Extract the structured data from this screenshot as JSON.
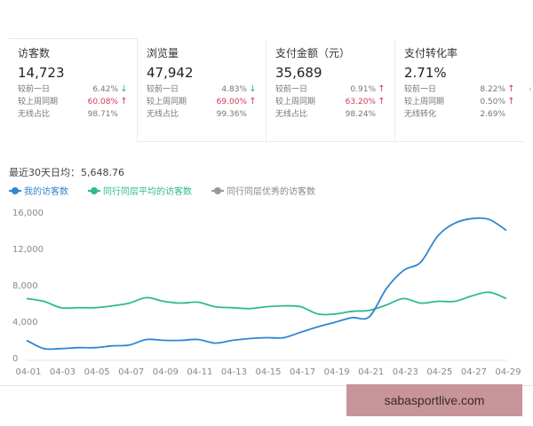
{
  "cards": [
    {
      "title": "访客数",
      "value": "14,723",
      "rows": [
        {
          "label": "较前一日",
          "pct": "6.42%",
          "dir": "down",
          "red": false
        },
        {
          "label": "较上周同期",
          "pct": "60.08%",
          "dir": "up",
          "red": true
        },
        {
          "label": "无线占比",
          "pct": "98.71%",
          "dir": "",
          "red": false
        }
      ]
    },
    {
      "title": "浏览量",
      "value": "47,942",
      "rows": [
        {
          "label": "较前一日",
          "pct": "4.83%",
          "dir": "down",
          "red": false
        },
        {
          "label": "较上周同期",
          "pct": "69.00%",
          "dir": "up",
          "red": true
        },
        {
          "label": "无线占比",
          "pct": "99.36%",
          "dir": "",
          "red": false
        }
      ]
    },
    {
      "title": "支付金额（元）",
      "value": "35,689",
      "rows": [
        {
          "label": "较前一日",
          "pct": "0.91%",
          "dir": "up",
          "red": false
        },
        {
          "label": "较上周同期",
          "pct": "63.20%",
          "dir": "up",
          "red": true
        },
        {
          "label": "无线占比",
          "pct": "98.24%",
          "dir": "",
          "red": false
        }
      ]
    },
    {
      "title": "支付转化率",
      "value": "2.71%",
      "rows": [
        {
          "label": "较前一日",
          "pct": "8.22%",
          "dir": "up",
          "red": false
        },
        {
          "label": "较上周同期",
          "pct": "0.50%",
          "dir": "up",
          "red": false
        },
        {
          "label": "无线转化",
          "pct": "2.69%",
          "dir": "",
          "red": false
        }
      ]
    }
  ],
  "average": {
    "label": "最近30天日均：",
    "value": "5,648.76"
  },
  "legend": [
    {
      "name": "我的访客数",
      "color": "#2f86d1"
    },
    {
      "name": "同行同层平均的访客数",
      "color": "#31b98f"
    },
    {
      "name": "同行同层优秀的访客数",
      "color": "#999999"
    }
  ],
  "watermark": "sabasportlive.com",
  "chart_data": {
    "type": "line",
    "x": [
      "04-01",
      "04-02",
      "04-03",
      "04-04",
      "04-05",
      "04-06",
      "04-07",
      "04-08",
      "04-09",
      "04-10",
      "04-11",
      "04-12",
      "04-13",
      "04-14",
      "04-15",
      "04-16",
      "04-17",
      "04-18",
      "04-19",
      "04-20",
      "04-21",
      "04-22",
      "04-23",
      "04-24",
      "04-25",
      "04-26",
      "04-27",
      "04-28",
      "04-29"
    ],
    "xticks": [
      "04-01",
      "04-03",
      "04-05",
      "04-07",
      "04-09",
      "04-11",
      "04-13",
      "04-15",
      "04-17",
      "04-19",
      "04-21",
      "04-23",
      "04-25",
      "04-27",
      "04-29"
    ],
    "yticks": [
      0,
      4000,
      8000,
      12000,
      16000
    ],
    "yticklabels": [
      "0",
      "4,000",
      "8,000",
      "12,000",
      "16,000"
    ],
    "ylim": [
      0,
      16500
    ],
    "series": [
      {
        "name": "我的访客数",
        "color": "#2f86d1",
        "values": [
          1900,
          1000,
          1000,
          1100,
          1100,
          1300,
          1400,
          2000,
          1900,
          1900,
          2000,
          1600,
          1900,
          2100,
          2200,
          2200,
          2800,
          3400,
          3900,
          4400,
          4500,
          7600,
          9600,
          10500,
          13400,
          14800,
          15300,
          15200,
          14000
        ]
      },
      {
        "name": "同行同层平均的访客数",
        "color": "#31b98f",
        "values": [
          6500,
          6200,
          5500,
          5500,
          5500,
          5700,
          6000,
          6600,
          6200,
          6000,
          6100,
          5600,
          5500,
          5400,
          5600,
          5700,
          5600,
          4800,
          4800,
          5100,
          5200,
          5800,
          6500,
          6000,
          6200,
          6200,
          6800,
          7200,
          6500
        ]
      }
    ]
  }
}
